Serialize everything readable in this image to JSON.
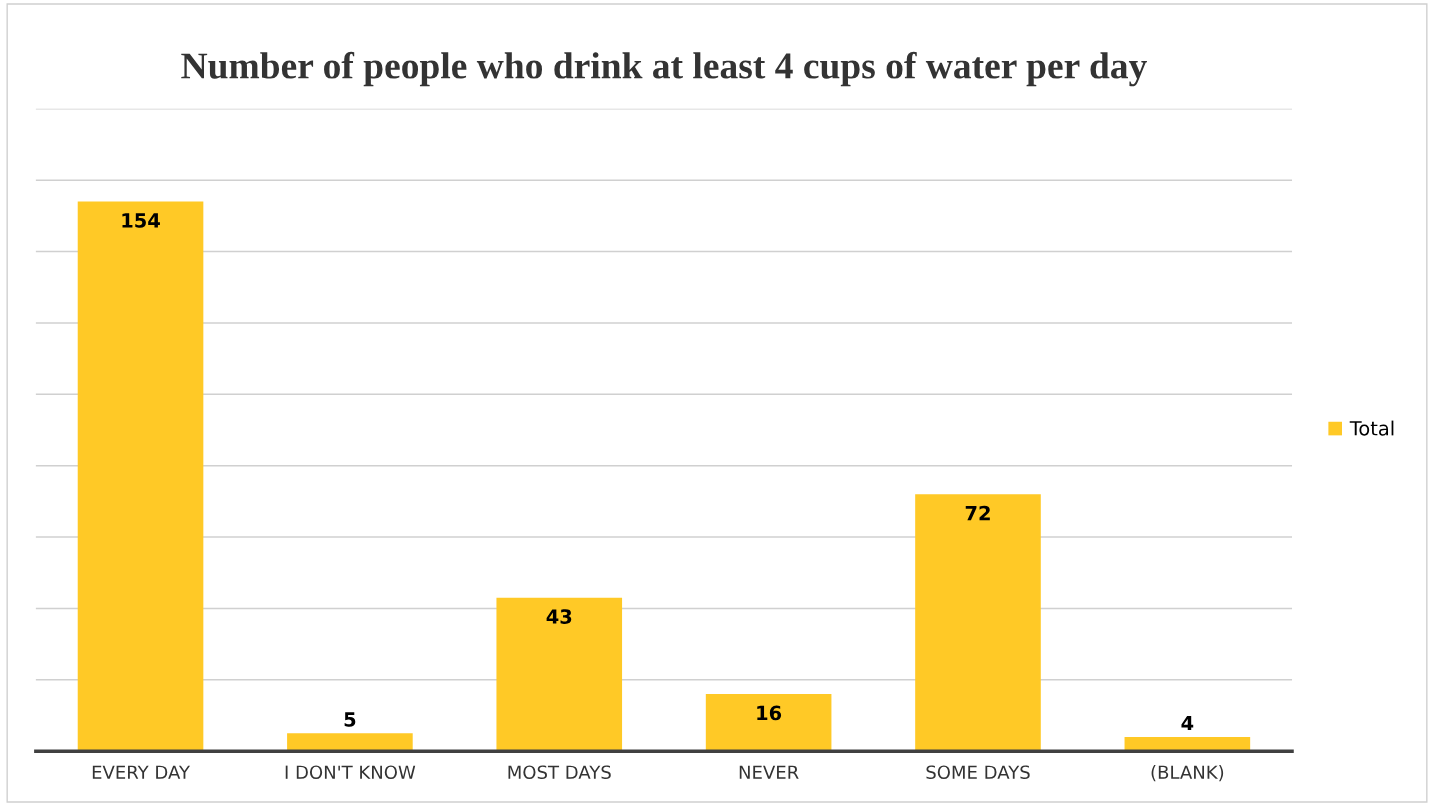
{
  "chart_data": {
    "type": "bar",
    "title": "Number of people who drink at least 4 cups of water per day",
    "categories": [
      "EVERY DAY",
      "I DON'T KNOW",
      "MOST DAYS",
      "NEVER",
      "SOME DAYS",
      "(BLANK)"
    ],
    "series": [
      {
        "name": "Total",
        "color": "#ffc926",
        "values": [
          154,
          5,
          43,
          16,
          72,
          4
        ]
      }
    ],
    "ylim": [
      0,
      180
    ],
    "yticks": [
      {
        "value": 0,
        "label": null
      },
      {
        "value": 20,
        "label": null
      },
      {
        "value": 40,
        "label": null
      },
      {
        "value": 60,
        "label": null
      },
      {
        "value": 80,
        "label": null
      },
      {
        "value": 100,
        "label": null
      },
      {
        "value": 120,
        "label": null
      },
      {
        "value": 140,
        "label": null
      },
      {
        "value": 160,
        "label": null
      },
      {
        "value": 180,
        "label": null
      }
    ],
    "grid": "y",
    "legend": "right",
    "data_labels": true,
    "tick_labels": "x"
  }
}
